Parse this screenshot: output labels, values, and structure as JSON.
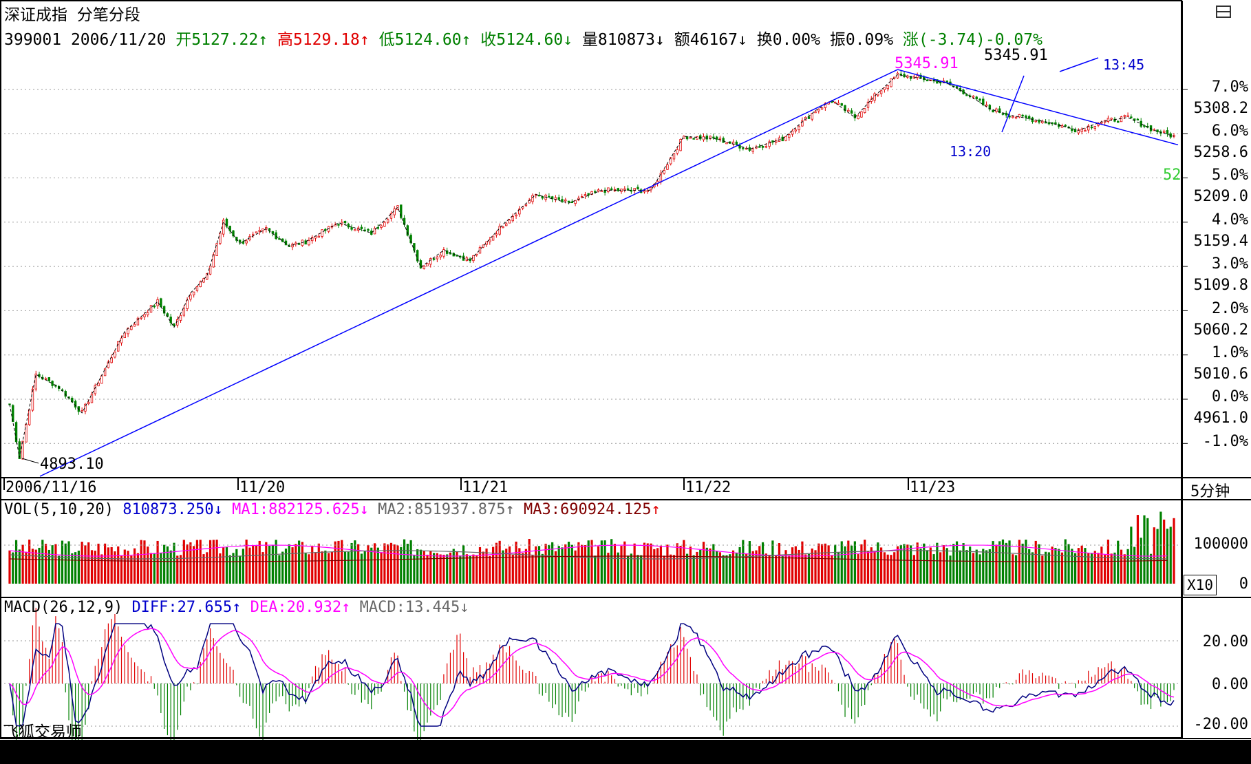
{
  "header": {
    "title": "深证成指",
    "mode": "分笔分段",
    "code": "399001",
    "date": "2006/11/20",
    "open": "开5127.22",
    "high": "高5129.18",
    "low": "低5124.60",
    "close": "收5124.60",
    "volume": "量810873",
    "amount": "额46167",
    "turnover": "换0.00%",
    "amplitude": "振0.09%",
    "change": "涨(-3.74)-0.07%",
    "up_arrow": "↑",
    "down_arrow": "↓"
  },
  "colors": {
    "up": "#e00000",
    "down": "#008000",
    "trendline": "#0000ff",
    "ma1": "#ff00ff",
    "ma2": "#666666",
    "ma3": "#800000",
    "grid": "#999999"
  },
  "price_axis": {
    "percent_labels": [
      "7.0%",
      "6.0%",
      "5.0%",
      "4.0%",
      "3.0%",
      "2.0%",
      "1.0%",
      "0.0%",
      "-1.0%"
    ],
    "price_labels": [
      "5308.2",
      "5258.6",
      "5209.0",
      "5159.4",
      "5109.8",
      "5060.2",
      "5010.6",
      "4961.0"
    ]
  },
  "date_labels": [
    "2006/11/16",
    "11/20",
    "11/21",
    "11/22",
    "11/23"
  ],
  "period": "5分钟",
  "annotations": {
    "low_value": "4893.10",
    "high_value": "5345.91",
    "high_value_magenta": "5345.91",
    "time_1": "13:45",
    "time_2": "13:20",
    "partial_right": "52"
  },
  "vol_panel": {
    "title": "VOL(5,10,20)",
    "value": "810873.250",
    "ma1": "MA1:882125.625",
    "ma2": "MA2:851937.875",
    "ma3": "MA3:690924.125",
    "axis_top": "100000",
    "axis_bottom": "0",
    "multiplier": "X10"
  },
  "macd_panel": {
    "title": "MACD(26,12,9)",
    "diff": "DIFF:27.655",
    "dea": "DEA:20.932",
    "macd": "MACD:13.445",
    "axis_labels": [
      "20.00",
      "0.00",
      "-20.00"
    ]
  },
  "footer": {
    "brand": "飞狐交易师"
  },
  "chart_data": {
    "type": "candlestick",
    "symbol": "399001",
    "price_range": [
      4893.1,
      5345.91
    ],
    "base_price": 4961.0,
    "y_ticks": [
      4961.0,
      5010.6,
      5060.2,
      5109.8,
      5159.4,
      5209.0,
      5258.6,
      5308.2
    ],
    "close_path": [
      [
        0,
        4955
      ],
      [
        3,
        4893
      ],
      [
        8,
        4990
      ],
      [
        15,
        4975
      ],
      [
        22,
        4945
      ],
      [
        35,
        5040
      ],
      [
        45,
        5075
      ],
      [
        50,
        5045
      ],
      [
        55,
        5085
      ],
      [
        60,
        5105
      ],
      [
        65,
        5168
      ],
      [
        70,
        5143
      ],
      [
        78,
        5160
      ],
      [
        85,
        5140
      ],
      [
        90,
        5145
      ],
      [
        100,
        5167
      ],
      [
        110,
        5155
      ],
      [
        118,
        5185
      ],
      [
        125,
        5115
      ],
      [
        132,
        5135
      ],
      [
        140,
        5123
      ],
      [
        150,
        5165
      ],
      [
        160,
        5200
      ],
      [
        170,
        5190
      ],
      [
        180,
        5205
      ],
      [
        195,
        5205
      ],
      [
        205,
        5268
      ],
      [
        215,
        5265
      ],
      [
        225,
        5253
      ],
      [
        235,
        5265
      ],
      [
        245,
        5298
      ],
      [
        250,
        5310
      ],
      [
        257,
        5290
      ],
      [
        263,
        5315
      ],
      [
        270,
        5340
      ],
      [
        278,
        5335
      ],
      [
        285,
        5330
      ],
      [
        290,
        5320
      ],
      [
        298,
        5300
      ],
      [
        305,
        5292
      ],
      [
        315,
        5285
      ],
      [
        325,
        5275
      ],
      [
        332,
        5285
      ],
      [
        340,
        5290
      ],
      [
        348,
        5275
      ],
      [
        354,
        5268
      ]
    ],
    "pivots": [
      [
        3,
        4893.1
      ],
      [
        270,
        5345.91
      ]
    ],
    "series": [
      {
        "name": "MA1",
        "value": 882125.625
      },
      {
        "name": "MA2",
        "value": 851937.875
      },
      {
        "name": "MA3",
        "value": 690924.125
      },
      {
        "name": "DIFF",
        "value": 27.655
      },
      {
        "name": "DEA",
        "value": 20.932
      },
      {
        "name": "MACD",
        "value": 13.445
      }
    ],
    "macd_range": [
      -20,
      20
    ],
    "vol_range": [
      0,
      160000
    ]
  }
}
